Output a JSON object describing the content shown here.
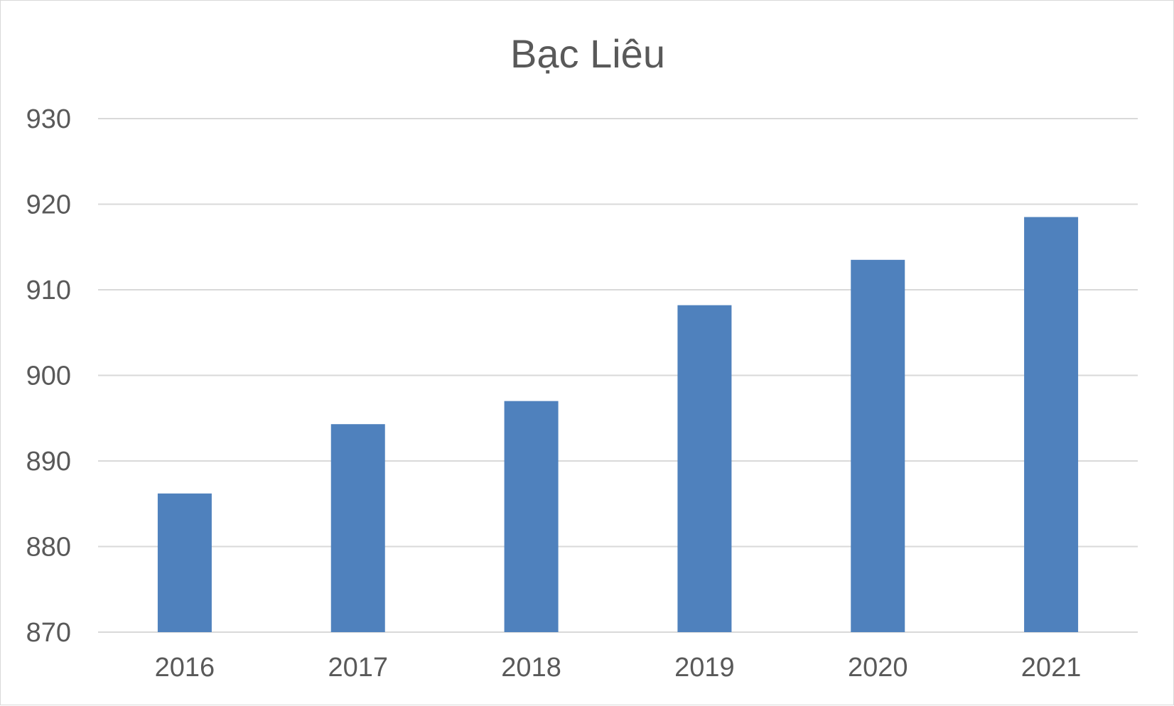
{
  "chart_data": {
    "type": "bar",
    "title": "Bạc Liêu",
    "xlabel": "",
    "ylabel": "",
    "categories": [
      "2016",
      "2017",
      "2018",
      "2019",
      "2020",
      "2021"
    ],
    "values": [
      886.2,
      894.3,
      897.0,
      908.2,
      913.5,
      918.5
    ],
    "ylim": [
      870,
      930
    ],
    "yticks": [
      "870",
      "880",
      "890",
      "900",
      "910",
      "920",
      "930"
    ],
    "grid": true,
    "legend": "none",
    "colors": {
      "bar": "#4f81bd",
      "grid": "#d9d9d9",
      "text": "#595959",
      "border": "#d9d9d9"
    }
  }
}
